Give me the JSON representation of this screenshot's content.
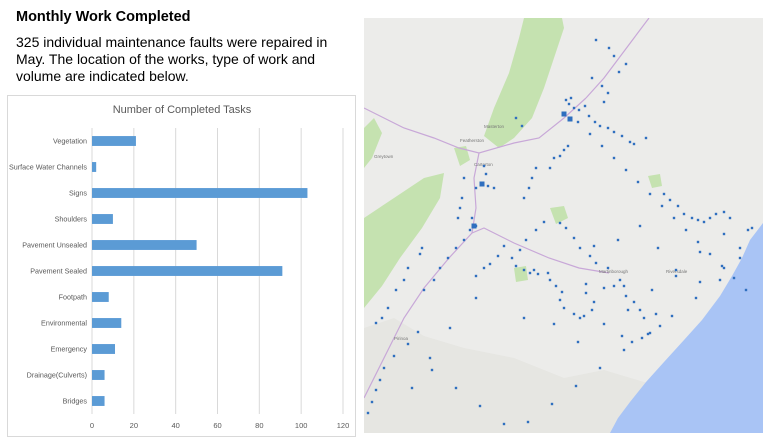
{
  "page": {
    "heading": "Monthly Work Completed",
    "summary": "325 individual maintenance faults were repaired in May. The location of the works, type of work and volume are indicated below."
  },
  "chart_data": {
    "type": "bar",
    "orientation": "horizontal",
    "title": "Number of Completed Tasks",
    "categories": [
      "Vegetation",
      "Surface Water Channels",
      "Signs",
      "Shoulders",
      "Pavement Unsealed",
      "Pavement Sealed",
      "Footpath",
      "Environmental",
      "Emergency",
      "Drainage(Culverts)",
      "Bridges"
    ],
    "values": [
      21,
      2,
      103,
      10,
      50,
      91,
      8,
      14,
      11,
      6,
      6
    ],
    "xlim": [
      0,
      120
    ],
    "xticks": [
      0,
      20,
      40,
      60,
      80,
      100,
      120
    ],
    "grid": true,
    "bar_color": "#5b9bd5",
    "xlabel": "",
    "ylabel": ""
  },
  "map": {
    "land_color": "#ececea",
    "sea_color": "#a9c4f5",
    "park_color": "#c5e2b0",
    "road_color": "#c8a8d8",
    "marker_color": "#2f6fbf",
    "labels": [
      "Masterton",
      "Featherston",
      "Greytown",
      "Carterton",
      "Martinborough",
      "Pirinoa",
      "Riversdale"
    ]
  }
}
